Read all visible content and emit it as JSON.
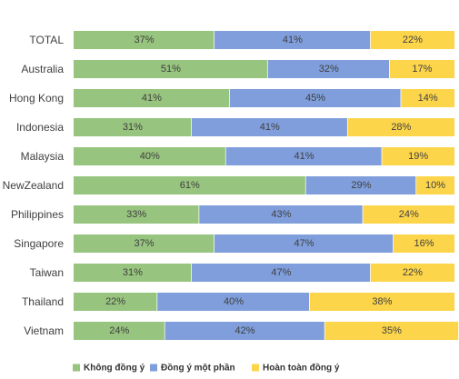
{
  "chart_data": {
    "type": "bar",
    "orientation": "horizontal",
    "stacked": true,
    "percent": true,
    "categories": [
      "TOTAL",
      "Australia",
      "Hong Kong",
      "Indonesia",
      "Malaysia",
      "NewZealand",
      "Philippines",
      "Singapore",
      "Taiwan",
      "Thailand",
      "Vietnam"
    ],
    "series": [
      {
        "name": "Không đồng ý",
        "color": "#97C47E",
        "values": [
          37,
          51,
          41,
          31,
          40,
          61,
          33,
          37,
          31,
          22,
          24
        ]
      },
      {
        "name": "Đồng ý một phần",
        "color": "#7F9EDB",
        "values": [
          41,
          32,
          45,
          41,
          41,
          29,
          43,
          47,
          47,
          40,
          42
        ]
      },
      {
        "name": "Hoàn toàn đồng ý",
        "color": "#FDD54B",
        "values": [
          22,
          17,
          14,
          28,
          19,
          10,
          24,
          16,
          22,
          38,
          35
        ]
      }
    ],
    "value_suffix": "%",
    "xlim": [
      0,
      100
    ],
    "legend_position": "bottom-left",
    "grid": false
  }
}
